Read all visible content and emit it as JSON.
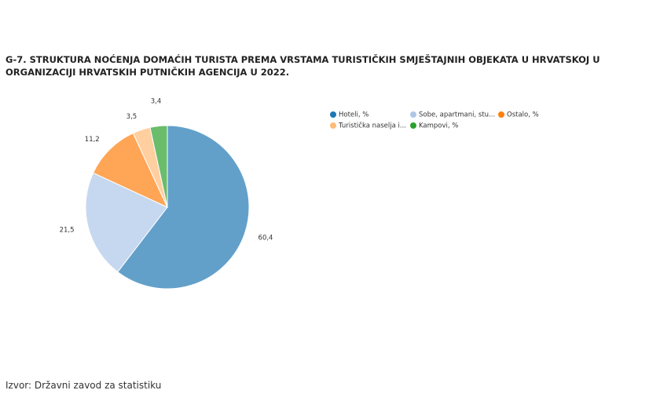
{
  "chart_data": {
    "type": "pie",
    "title": "G-7. STRUKTURA NOĆENJA DOMAĆIH TURISTA PREMA VRSTAMA TURISTIČKIH SMJEŠTAJNIH OBJEKATA U HRVATSKOJ U ORGANIZACIJI HRVATSKIH PUTNIČKIH AGENCIJA U 2022.",
    "categories": [
      "Hoteli, %",
      "Sobe, apartmani, stu...",
      "Ostalo, %",
      "Turistička naselja i...",
      "Kampovi, %"
    ],
    "values": [
      60.4,
      21.5,
      11.2,
      3.5,
      3.4
    ],
    "value_labels": [
      "60,4",
      "21,5",
      "11,2",
      "3,5",
      "3,4"
    ],
    "colors": [
      "#1f77b4",
      "#aec7e8",
      "#ff7f0e",
      "#ffbb78",
      "#2ca02c"
    ],
    "source": "Izvor: Državni zavod za statistiku"
  }
}
